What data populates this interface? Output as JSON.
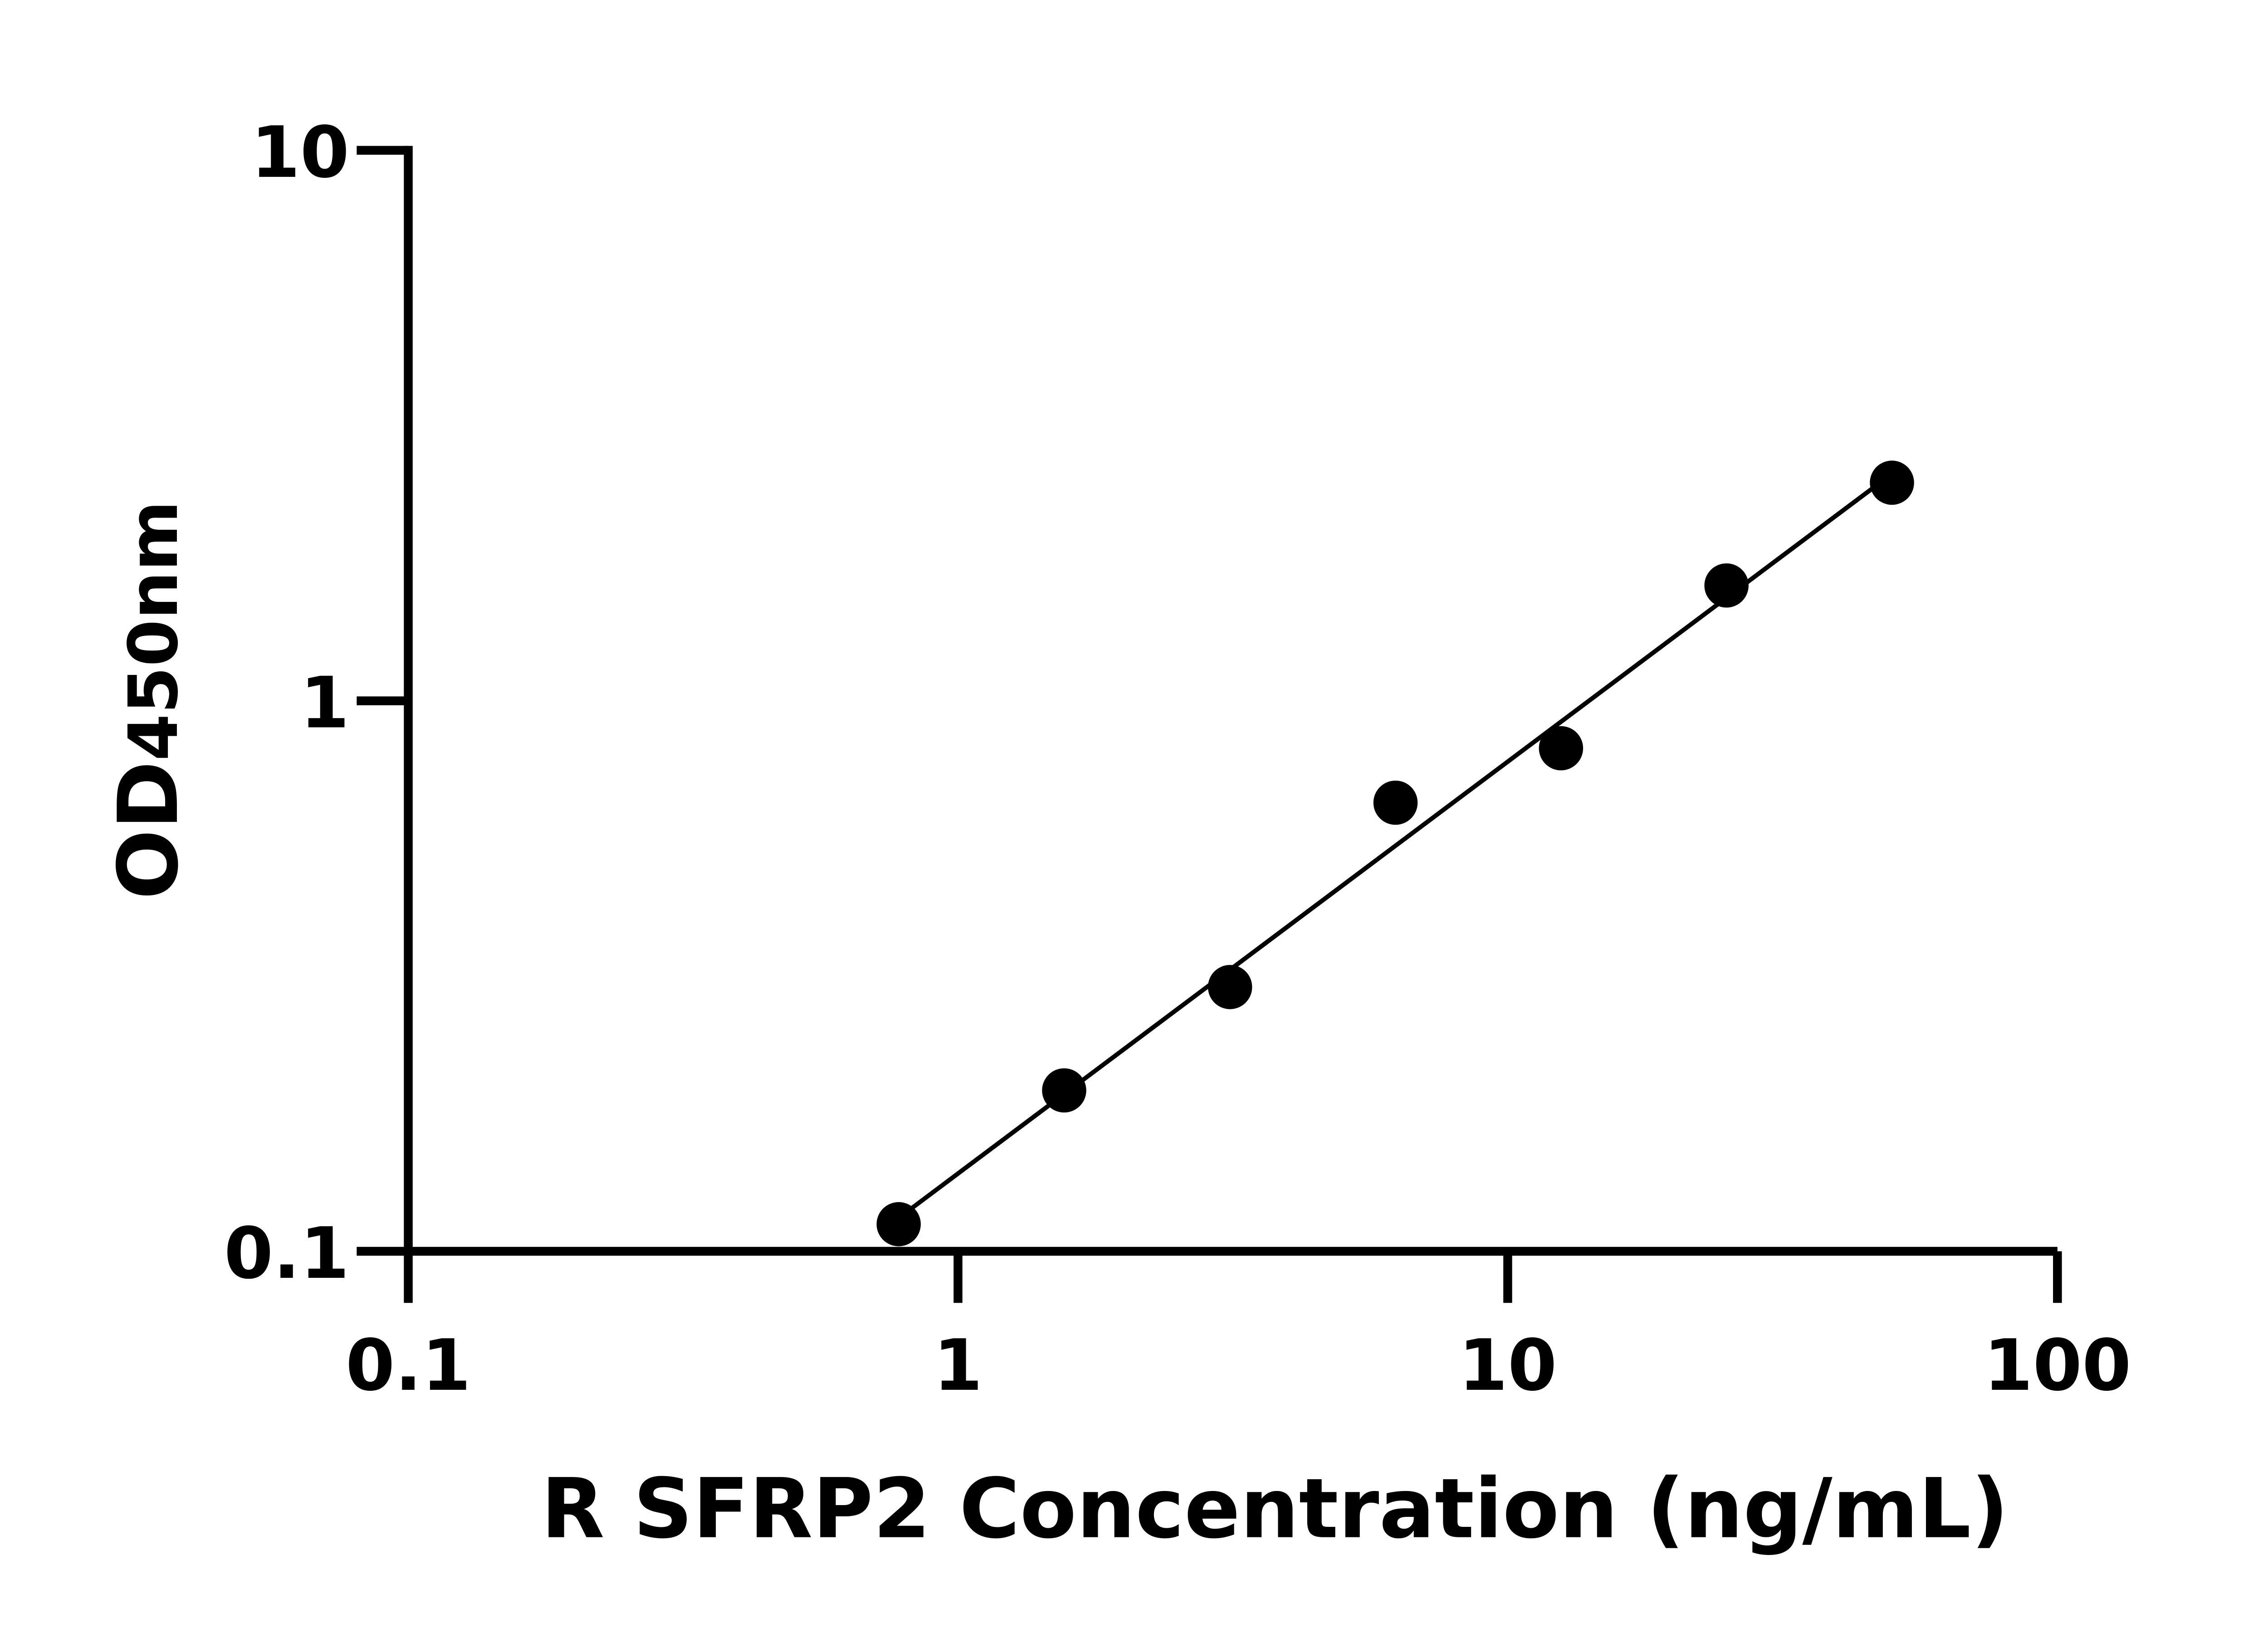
{
  "chart_data": {
    "type": "scatter",
    "title": "",
    "xlabel": "R SFRP2 Concentration (ng/mL)",
    "ylabel": "OD450nm",
    "ylabel_main": "OD",
    "ylabel_sub": "450nm",
    "x_scale": "log",
    "y_scale": "log",
    "xlim": [
      0.1,
      100
    ],
    "ylim": [
      0.1,
      10
    ],
    "x_ticks": [
      "0.1",
      "1",
      "10",
      "100"
    ],
    "y_ticks": [
      "0.1",
      "1",
      "10"
    ],
    "grid": false,
    "fit_line": "linear fit in log-log space",
    "series": [
      {
        "x": [
          0.78,
          1.56,
          3.125,
          6.25,
          12.5,
          25,
          50
        ],
        "y": [
          0.112,
          0.196,
          0.302,
          0.653,
          0.82,
          1.62,
          2.49
        ]
      }
    ],
    "colors": {
      "marker": "#000000",
      "line": "#000000"
    }
  }
}
